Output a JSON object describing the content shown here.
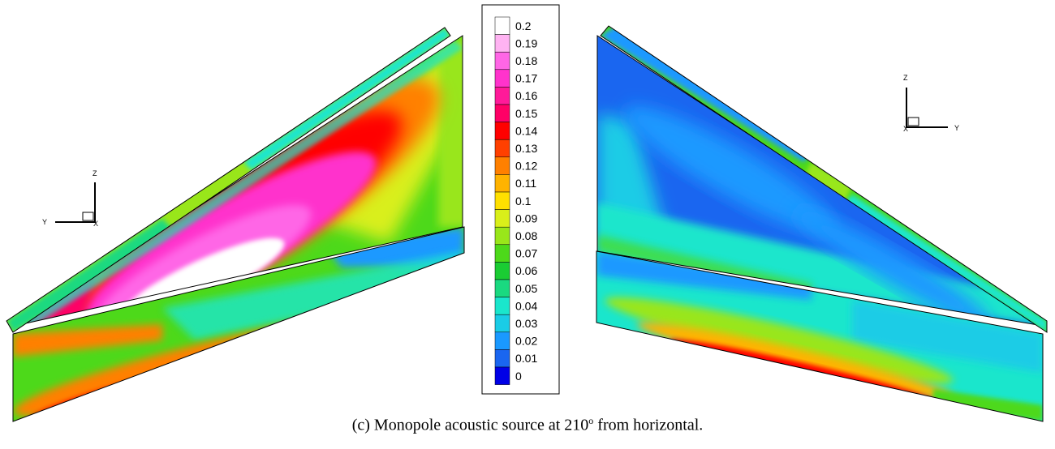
{
  "legend": {
    "labels": [
      "0.2",
      "0.19",
      "0.18",
      "0.17",
      "0.16",
      "0.15",
      "0.14",
      "0.13",
      "0.12",
      "0.11",
      "0.1",
      "0.09",
      "0.08",
      "0.07",
      "0.06",
      "0.05",
      "0.04",
      "0.03",
      "0.02",
      "0.01",
      "0"
    ],
    "colors": [
      "#ffffff",
      "#ffb3f2",
      "#ff66e6",
      "#ff33cc",
      "#ff1a99",
      "#ff0066",
      "#ff0000",
      "#ff4000",
      "#ff8000",
      "#ffb300",
      "#ffe000",
      "#d9ef1a",
      "#99e61a",
      "#4dd91a",
      "#1acc33",
      "#1ad980",
      "#1ae6cc",
      "#1acce6",
      "#1a99ff",
      "#1a66f0",
      "#0000e6"
    ]
  },
  "triads": {
    "left": {
      "vertical": "Z",
      "horizontal": "Y",
      "out": "X"
    },
    "right": {
      "vertical": "Z",
      "horizontal": "Y",
      "out": "X"
    }
  },
  "caption": {
    "prefix": "(c) Monopole acoustic source at 210",
    "degree": "o",
    "suffix": " from horizontal."
  }
}
